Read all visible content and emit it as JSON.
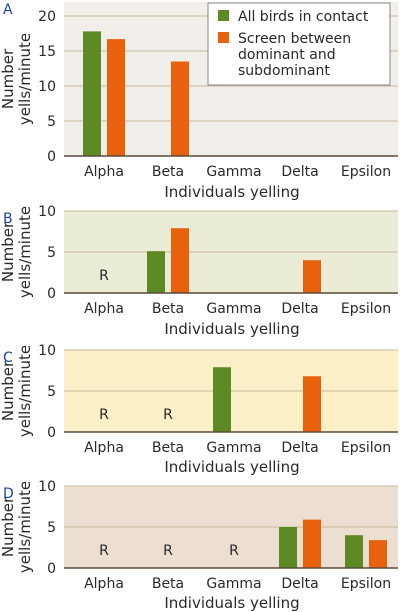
{
  "colors": {
    "all_birds": "#5e8a26",
    "screen": "#e8620e",
    "grid": "#c9b79c",
    "axis": "#5a4a3a"
  },
  "legend": {
    "items": [
      {
        "label": [
          "All birds in contact"
        ],
        "color": "#5e8a26"
      },
      {
        "label": [
          "Screen between",
          "dominant and",
          "subdominant"
        ],
        "color": "#e8620e"
      }
    ]
  },
  "chart_data": [
    {
      "panel": "A",
      "type": "bar",
      "background": "#f2eeea",
      "categories": [
        "Alpha",
        "Beta",
        "Gamma",
        "Delta",
        "Epsilon"
      ],
      "series": [
        {
          "name": "All birds in contact",
          "values": [
            17.8,
            null,
            null,
            null,
            null
          ]
        },
        {
          "name": "Screen between dominant and subdominant",
          "values": [
            16.7,
            13.5,
            null,
            null,
            null
          ]
        }
      ],
      "markers": [],
      "xlabel": "Individuals yelling",
      "ylabel": [
        "Number",
        "yells/minute"
      ],
      "yticks": [
        0,
        5,
        10,
        15,
        20
      ],
      "ylim": [
        0,
        22
      ],
      "grid": true
    },
    {
      "panel": "B",
      "type": "bar",
      "background": "#ebecd6",
      "categories": [
        "Alpha",
        "Beta",
        "Gamma",
        "Delta",
        "Epsilon"
      ],
      "series": [
        {
          "name": "All birds in contact",
          "values": [
            null,
            5.1,
            null,
            null,
            null
          ]
        },
        {
          "name": "Screen between dominant and subdominant",
          "values": [
            null,
            7.9,
            null,
            4.0,
            null
          ]
        }
      ],
      "markers": [
        {
          "category": "Alpha",
          "text": "R"
        }
      ],
      "xlabel": "Individuals yelling",
      "ylabel": [
        "Number",
        "yells/minute"
      ],
      "yticks": [
        0,
        5,
        10
      ],
      "ylim": [
        0,
        10
      ],
      "grid": true
    },
    {
      "panel": "C",
      "type": "bar",
      "background": "#fcf0c8",
      "categories": [
        "Alpha",
        "Beta",
        "Gamma",
        "Delta",
        "Epsilon"
      ],
      "series": [
        {
          "name": "All birds in contact",
          "values": [
            null,
            null,
            7.9,
            null,
            null
          ]
        },
        {
          "name": "Screen between dominant and subdominant",
          "values": [
            null,
            null,
            null,
            6.8,
            null
          ]
        }
      ],
      "markers": [
        {
          "category": "Alpha",
          "text": "R"
        },
        {
          "category": "Beta",
          "text": "R"
        }
      ],
      "xlabel": "Individuals yelling",
      "ylabel": [
        "Number",
        "yells/minute"
      ],
      "yticks": [
        0,
        5,
        10
      ],
      "ylim": [
        0,
        10
      ],
      "grid": true
    },
    {
      "panel": "D",
      "type": "bar",
      "background": "#ecdfd2",
      "categories": [
        "Alpha",
        "Beta",
        "Gamma",
        "Delta",
        "Epsilon"
      ],
      "series": [
        {
          "name": "All birds in contact",
          "values": [
            null,
            null,
            null,
            5.0,
            4.0
          ]
        },
        {
          "name": "Screen between dominant and subdominant",
          "values": [
            null,
            null,
            null,
            5.9,
            3.4
          ]
        }
      ],
      "markers": [
        {
          "category": "Alpha",
          "text": "R"
        },
        {
          "category": "Beta",
          "text": "R"
        },
        {
          "category": "Gamma",
          "text": "R"
        }
      ],
      "xlabel": "Individuals yelling",
      "ylabel": [
        "Number",
        "yells/minute"
      ],
      "yticks": [
        0,
        5,
        10
      ],
      "ylim": [
        0,
        10
      ],
      "grid": true
    }
  ]
}
